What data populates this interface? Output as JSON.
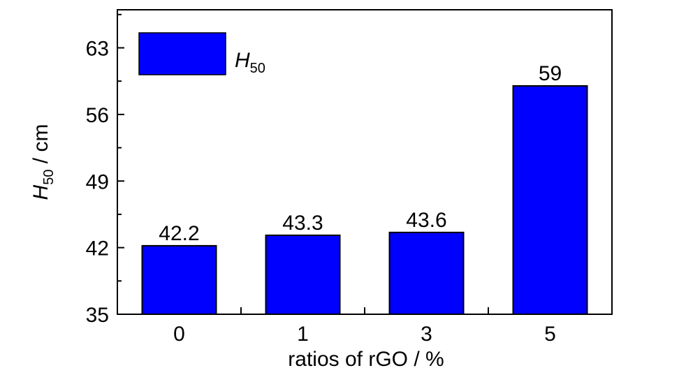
{
  "chart_data": {
    "type": "bar",
    "categories": [
      "0",
      "1",
      "3",
      "5"
    ],
    "series": [
      {
        "name": "H50",
        "values": [
          42.2,
          43.3,
          43.6,
          59
        ]
      }
    ],
    "data_labels": [
      "42.2",
      "43.3",
      "43.6",
      "59"
    ],
    "xlabel": "ratios of rGO / %",
    "ylabel": {
      "main": "H",
      "sub": "50",
      "rest": " / cm"
    },
    "legend": {
      "main": "H",
      "sub": "50",
      "placement": "top-left"
    },
    "ylim": [
      35,
      67
    ],
    "yticks": [
      35,
      42,
      49,
      56,
      63
    ],
    "ytick_labels": [
      "35",
      "42",
      "49",
      "56",
      "63"
    ],
    "grid": false,
    "colors": {
      "bar": "#0000ff",
      "edge": "#000000"
    }
  }
}
